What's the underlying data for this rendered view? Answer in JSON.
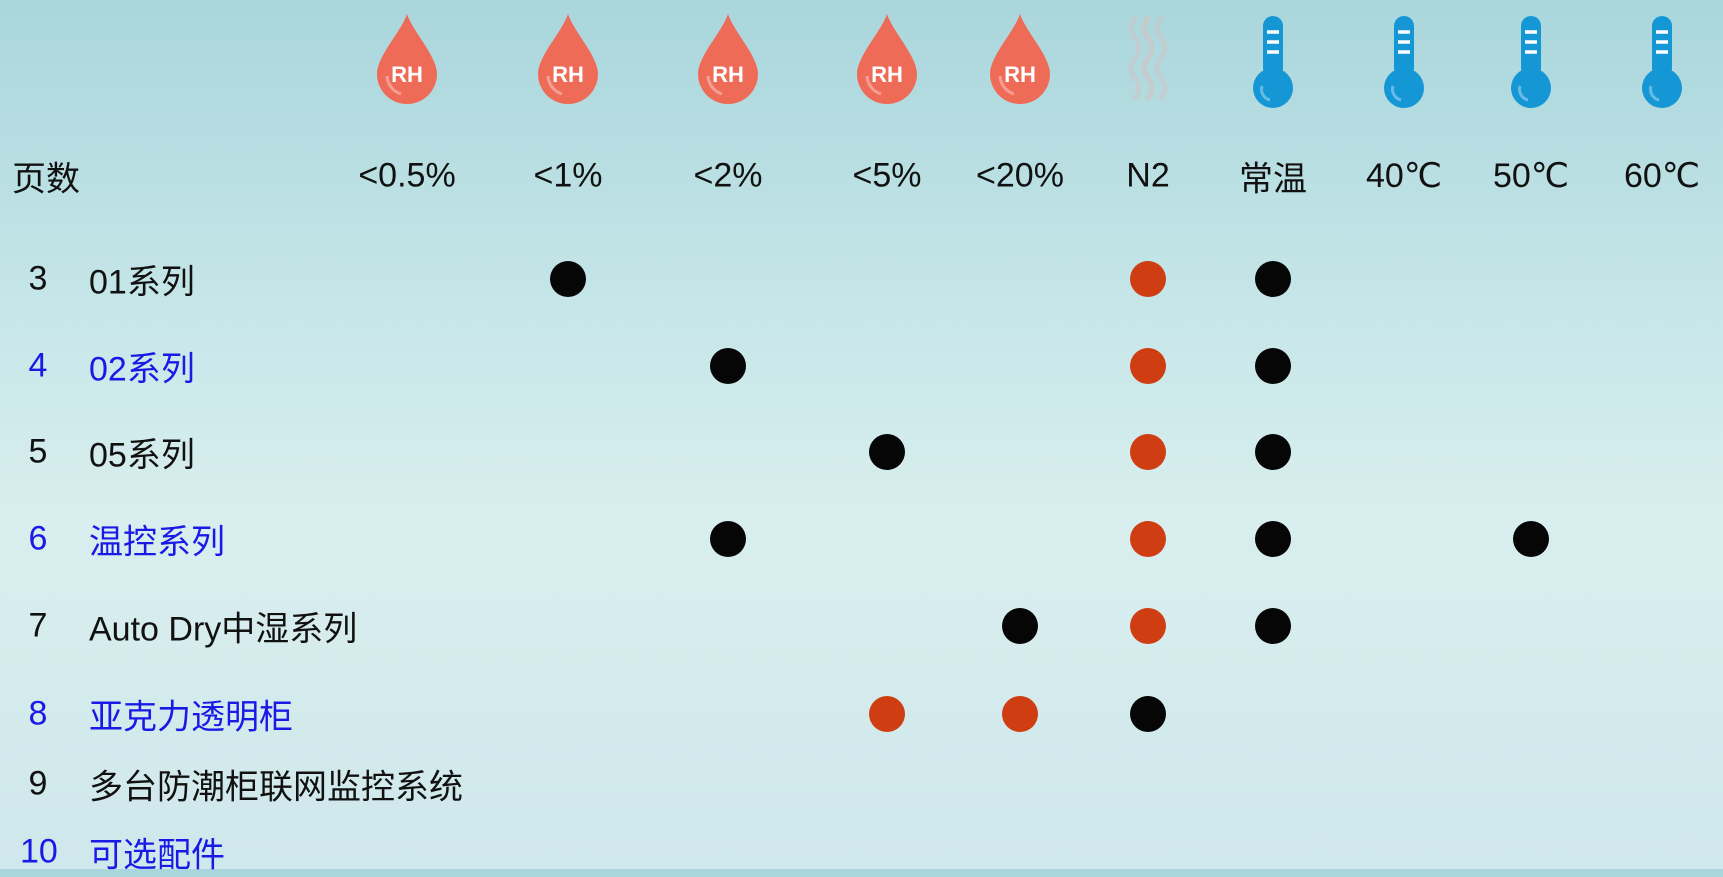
{
  "table": {
    "page_header": "页数",
    "columns": [
      {
        "icon": "humidity-drop-icon",
        "icon_text": "RH",
        "label": "<0.5%"
      },
      {
        "icon": "humidity-drop-icon",
        "icon_text": "RH",
        "label": "<1%"
      },
      {
        "icon": "humidity-drop-icon",
        "icon_text": "RH",
        "label": "<2%"
      },
      {
        "icon": "humidity-drop-icon",
        "icon_text": "RH",
        "label": "<5%"
      },
      {
        "icon": "humidity-drop-icon",
        "icon_text": "RH",
        "label": "<20%"
      },
      {
        "icon": "nitrogen-gas-icon",
        "label": "N2"
      },
      {
        "icon": "thermometer-icon",
        "label": "常温"
      },
      {
        "icon": "thermometer-icon",
        "label": "40℃"
      },
      {
        "icon": "thermometer-icon",
        "label": "50℃"
      },
      {
        "icon": "thermometer-icon",
        "label": "60℃"
      }
    ],
    "rows": [
      {
        "page": "3",
        "name": "01系列",
        "highlight": false,
        "marks": [
          {
            "col": "<1%",
            "color": "black"
          },
          {
            "col": "N2",
            "color": "red"
          },
          {
            "col": "常温",
            "color": "black"
          }
        ]
      },
      {
        "page": "4",
        "name": "02系列",
        "highlight": true,
        "marks": [
          {
            "col": "<2%",
            "color": "black"
          },
          {
            "col": "N2",
            "color": "red"
          },
          {
            "col": "常温",
            "color": "black"
          }
        ]
      },
      {
        "page": "5",
        "name": "05系列",
        "highlight": false,
        "marks": [
          {
            "col": "<5%",
            "color": "black"
          },
          {
            "col": "N2",
            "color": "red"
          },
          {
            "col": "常温",
            "color": "black"
          }
        ]
      },
      {
        "page": "6",
        "name": "温控系列",
        "highlight": true,
        "marks": [
          {
            "col": "<2%",
            "color": "black"
          },
          {
            "col": "N2",
            "color": "red"
          },
          {
            "col": "常温",
            "color": "black"
          },
          {
            "col": "50℃",
            "color": "black"
          }
        ]
      },
      {
        "page": "7",
        "name": "Auto Dry中湿系列",
        "highlight": false,
        "marks": [
          {
            "col": "<20%",
            "color": "black"
          },
          {
            "col": "N2",
            "color": "red"
          },
          {
            "col": "常温",
            "color": "black"
          }
        ]
      },
      {
        "page": "8",
        "name": "亚克力透明柜",
        "highlight": true,
        "marks": [
          {
            "col": "<5%",
            "color": "red"
          },
          {
            "col": "<20%",
            "color": "red"
          },
          {
            "col": "N2",
            "color": "black"
          }
        ]
      },
      {
        "page": "9",
        "name": "多台防潮柜联网监控系统",
        "highlight": false,
        "marks": []
      },
      {
        "page": "10",
        "name": "可选配件",
        "highlight": true,
        "marks": []
      }
    ]
  },
  "colors": {
    "text": "#111111",
    "link_blue": "#1a1ae6",
    "dot_black": "#060606",
    "dot_red": "#cf3d13",
    "rh_drop": "#ee6b57",
    "thermometer": "#1597d6",
    "n2_vapor": "#c9c9c9"
  }
}
